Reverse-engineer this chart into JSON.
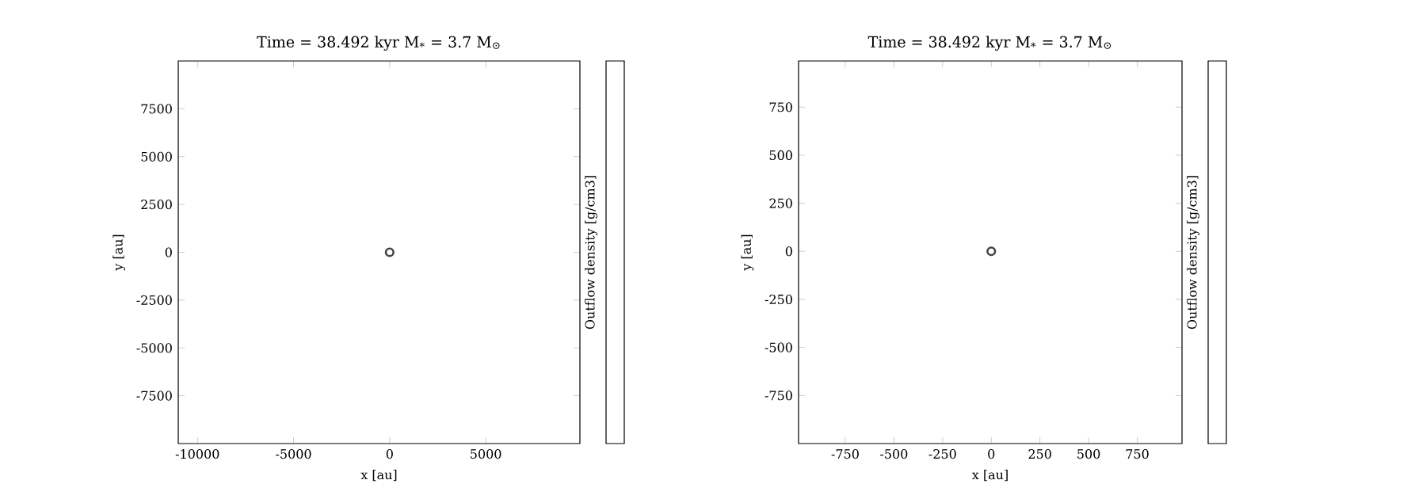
{
  "chart_data": [
    {
      "type": "scatter",
      "title": "Time = 38.492 kyr    M$_{*}$ = 3.7 M$_{⊙}$",
      "xlabel": "x [au]",
      "ylabel": "y [au]",
      "clabel": "Outflow density [g/cm3]",
      "xlim": [
        -11000,
        9900
      ],
      "ylim": [
        -10000,
        10000
      ],
      "xticks": [
        -10000,
        -5000,
        0,
        5000
      ],
      "yticks": [
        -7500,
        -5000,
        -2500,
        0,
        2500,
        5000,
        7500
      ],
      "marker": "circle",
      "series": [
        {
          "color": "#444444",
          "x": [
            0
          ],
          "values": [
            0
          ]
        }
      ]
    },
    {
      "type": "scatter",
      "title": "Time = 38.492 kyr    M$_{*}$ = 3.7 M$_{⊙}$",
      "xlabel": "x [au]",
      "ylabel": "y [au]",
      "clabel": "Outflow density [g/cm3]",
      "xlim": [
        -990,
        980
      ],
      "ylim": [
        -1000,
        990
      ],
      "xticks": [
        -750,
        -500,
        -250,
        0,
        250,
        500,
        750
      ],
      "yticks": [
        -750,
        -500,
        -250,
        0,
        250,
        500,
        750
      ],
      "marker": "circle",
      "series": [
        {
          "color": "#444444",
          "x": [
            0
          ],
          "values": [
            0
          ]
        }
      ]
    }
  ]
}
